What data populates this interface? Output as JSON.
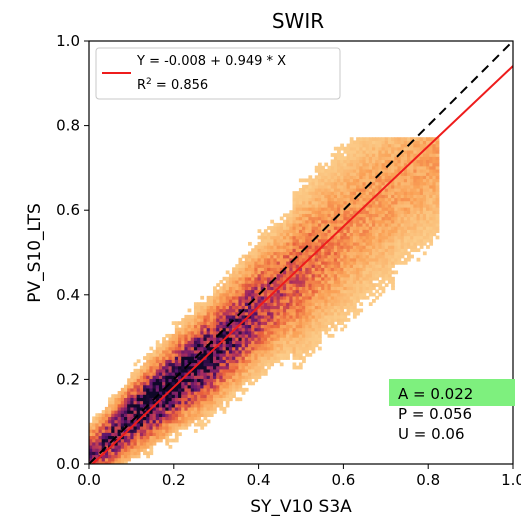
{
  "chart_data": {
    "type": "heatmap",
    "title": "SWIR",
    "xlabel": "SY_V10 S3A",
    "ylabel": "PV_S10_LTS",
    "xlim": [
      0.0,
      1.0
    ],
    "ylim": [
      0.0,
      1.0
    ],
    "x_ticks": [
      0.0,
      0.2,
      0.4,
      0.6,
      0.8,
      1.0
    ],
    "y_ticks": [
      0.0,
      0.2,
      0.4,
      0.6,
      0.8,
      1.0
    ],
    "x_tick_labels": [
      "0.0",
      "0.2",
      "0.4",
      "0.6",
      "0.8",
      "1.0"
    ],
    "y_tick_labels": [
      "0.0",
      "0.2",
      "0.4",
      "0.6",
      "0.8",
      "1.0"
    ],
    "grid": false,
    "colormap": "inferno",
    "density_ridge": {
      "x": [
        0.05,
        0.1,
        0.15,
        0.2,
        0.25,
        0.3,
        0.35,
        0.4,
        0.45,
        0.5,
        0.55,
        0.6,
        0.65,
        0.7,
        0.75
      ],
      "y": [
        0.06,
        0.11,
        0.15,
        0.19,
        0.23,
        0.27,
        0.32,
        0.37,
        0.41,
        0.45,
        0.5,
        0.54,
        0.59,
        0.63,
        0.67
      ]
    },
    "reference_line": {
      "style": "dashed",
      "color": "#000000",
      "slope": 1.0,
      "intercept": 0.0
    },
    "regression_line": {
      "color": "#ee1c1c",
      "intercept": -0.008,
      "slope": 0.949
    },
    "legend": {
      "position": "top-left",
      "equation": "Y = -0.008 + 0.949 * X",
      "r2_prefix": "R",
      "r2_sup": "2",
      "r2_suffix": " = 0.856"
    },
    "stats": {
      "A": "A = 0.022",
      "P": "P = 0.056",
      "U": "U = 0.06",
      "highlight_color": "#7ef07e"
    }
  }
}
